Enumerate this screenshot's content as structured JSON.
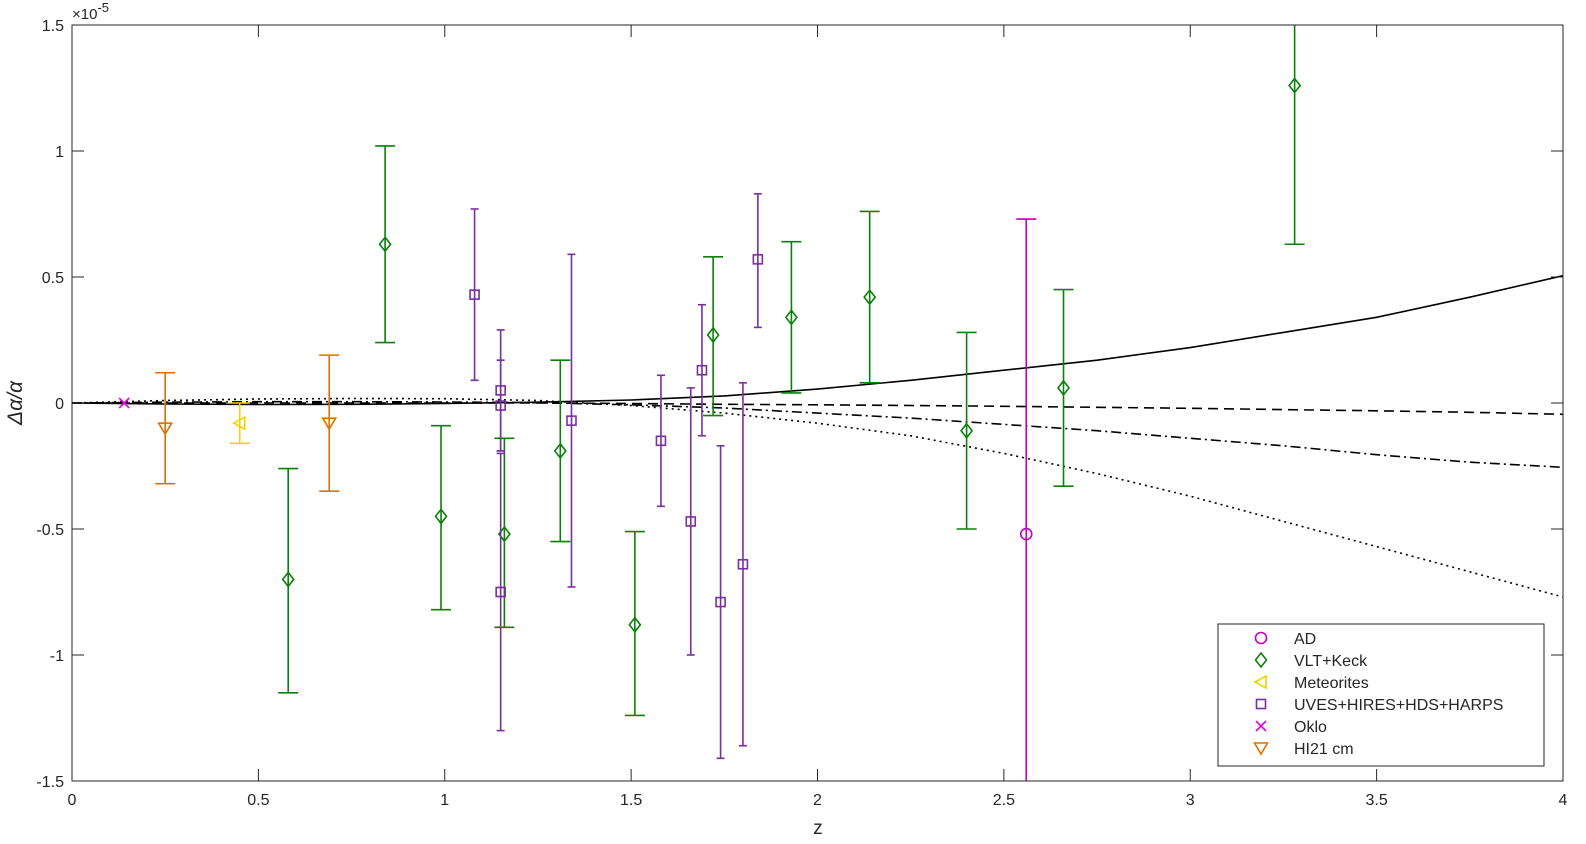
{
  "chart_data": {
    "type": "scatter",
    "xlabel": "z",
    "ylabel": "Δα/α",
    "scale_exponent_label": "×10",
    "scale_exponent_power": "-5",
    "xlim": [
      0,
      4
    ],
    "ylim": [
      -1.5,
      1.5
    ],
    "xticks": [
      0,
      0.5,
      1,
      1.5,
      2,
      2.5,
      3,
      3.5,
      4
    ],
    "xtick_labels": [
      "0",
      "0.5",
      "1",
      "1.5",
      "2",
      "2.5",
      "3",
      "3.5",
      "4"
    ],
    "yticks": [
      -1.5,
      -1,
      -0.5,
      0,
      0.5,
      1,
      1.5
    ],
    "ytick_labels": [
      "-1.5",
      "-1",
      "-0.5",
      "0",
      "0.5",
      "1",
      "1.5"
    ],
    "grid": false,
    "legend_position": "bottom-right",
    "series": [
      {
        "name": "AD",
        "marker": "circle",
        "color": "#c000c0",
        "points": [
          {
            "x": 2.56,
            "y": -0.52,
            "lo": -1.77,
            "hi": 0.73
          }
        ]
      },
      {
        "name": "VLT+Keck",
        "marker": "diamond",
        "color": "#0a800a",
        "points": [
          {
            "x": 0.58,
            "y": -0.7,
            "lo": -1.15,
            "hi": -0.26
          },
          {
            "x": 0.84,
            "y": 0.63,
            "lo": 0.24,
            "hi": 1.02
          },
          {
            "x": 0.99,
            "y": -0.45,
            "lo": -0.82,
            "hi": -0.09
          },
          {
            "x": 1.16,
            "y": -0.52,
            "lo": -0.89,
            "hi": -0.14
          },
          {
            "x": 1.31,
            "y": -0.19,
            "lo": -0.55,
            "hi": 0.17
          },
          {
            "x": 1.51,
            "y": -0.88,
            "lo": -1.24,
            "hi": -0.51
          },
          {
            "x": 1.72,
            "y": 0.27,
            "lo": -0.05,
            "hi": 0.58
          },
          {
            "x": 1.93,
            "y": 0.34,
            "lo": 0.04,
            "hi": 0.64
          },
          {
            "x": 2.14,
            "y": 0.42,
            "lo": 0.08,
            "hi": 0.76
          },
          {
            "x": 2.4,
            "y": -0.11,
            "lo": -0.5,
            "hi": 0.28
          },
          {
            "x": 2.66,
            "y": 0.06,
            "lo": -0.33,
            "hi": 0.45
          },
          {
            "x": 3.28,
            "y": 1.26,
            "lo": 0.63,
            "hi": 1.89
          }
        ]
      },
      {
        "name": "Meteorites",
        "marker": "triangle-left",
        "color": "#f2d200",
        "points": [
          {
            "x": 0.45,
            "y": -0.08,
            "lo": -0.16,
            "hi": 0.0
          }
        ]
      },
      {
        "name": "UVES+HIRES+HDS+HARPS",
        "marker": "square",
        "color": "#7a2f9e",
        "points": [
          {
            "x": 1.08,
            "y": 0.43,
            "lo": 0.09,
            "hi": 0.77
          },
          {
            "x": 1.15,
            "y": -0.75,
            "lo": -1.3,
            "hi": -0.2
          },
          {
            "x": 1.15,
            "y": 0.05,
            "lo": -0.19,
            "hi": 0.29
          },
          {
            "x": 1.15,
            "y": -0.01,
            "lo": -0.19,
            "hi": 0.17
          },
          {
            "x": 1.34,
            "y": -0.07,
            "lo": -0.73,
            "hi": 0.59
          },
          {
            "x": 1.58,
            "y": -0.15,
            "lo": -0.41,
            "hi": 0.11
          },
          {
            "x": 1.66,
            "y": -0.47,
            "lo": -1.0,
            "hi": 0.06
          },
          {
            "x": 1.69,
            "y": 0.13,
            "lo": -0.13,
            "hi": 0.39
          },
          {
            "x": 1.74,
            "y": -0.79,
            "lo": -1.41,
            "hi": -0.17
          },
          {
            "x": 1.8,
            "y": -0.64,
            "lo": -1.36,
            "hi": 0.08
          },
          {
            "x": 1.84,
            "y": 0.57,
            "lo": 0.3,
            "hi": 0.83
          }
        ]
      },
      {
        "name": "Oklo",
        "marker": "x",
        "color": "#e600e6",
        "points": [
          {
            "x": 0.14,
            "y": 0.0
          }
        ]
      },
      {
        "name": "HI21 cm",
        "marker": "triangle-down",
        "color": "#e07000",
        "points": [
          {
            "x": 0.25,
            "y": -0.1,
            "lo": -0.32,
            "hi": 0.12
          },
          {
            "x": 0.69,
            "y": -0.08,
            "lo": -0.35,
            "hi": 0.19
          }
        ]
      }
    ],
    "curves": [
      {
        "style": "solid",
        "color": "#000000",
        "x": [
          0,
          0.25,
          0.5,
          0.75,
          1.0,
          1.25,
          1.5,
          1.75,
          2.0,
          2.25,
          2.5,
          2.75,
          3.0,
          3.25,
          3.5,
          3.75,
          4.0
        ],
        "y": [
          0,
          -0.004,
          -0.006,
          -0.005,
          -0.002,
          0.003,
          0.012,
          0.028,
          0.055,
          0.09,
          0.13,
          0.17,
          0.22,
          0.28,
          0.34,
          0.42,
          0.505
        ]
      },
      {
        "style": "dashed",
        "color": "#000000",
        "x": [
          0,
          0.25,
          0.5,
          0.75,
          1.0,
          1.25,
          1.5,
          1.75,
          2.0,
          2.25,
          2.5,
          2.75,
          3.0,
          3.25,
          3.5,
          3.75,
          4.0
        ],
        "y": [
          0,
          0.0,
          0.0,
          0.0,
          0.0,
          0.0,
          -0.002,
          -0.005,
          -0.007,
          -0.01,
          -0.013,
          -0.017,
          -0.021,
          -0.026,
          -0.031,
          -0.037,
          -0.045
        ]
      },
      {
        "style": "dashdot",
        "color": "#000000",
        "x": [
          0,
          0.25,
          0.5,
          0.75,
          1.0,
          1.25,
          1.5,
          1.75,
          2.0,
          2.25,
          2.5,
          2.75,
          3.0,
          3.25,
          3.5,
          3.75,
          4.0
        ],
        "y": [
          0,
          0.003,
          0.005,
          0.005,
          0.004,
          0.001,
          -0.007,
          -0.02,
          -0.04,
          -0.06,
          -0.085,
          -0.11,
          -0.14,
          -0.17,
          -0.205,
          -0.235,
          -0.255
        ]
      },
      {
        "style": "dotted",
        "color": "#000000",
        "x": [
          0,
          0.25,
          0.5,
          0.75,
          1.0,
          1.25,
          1.5,
          1.75,
          2.0,
          2.25,
          2.5,
          2.75,
          3.0,
          3.25,
          3.5,
          3.75,
          4.0
        ],
        "y": [
          0,
          0.01,
          0.016,
          0.018,
          0.017,
          0.01,
          -0.01,
          -0.04,
          -0.08,
          -0.13,
          -0.2,
          -0.28,
          -0.37,
          -0.47,
          -0.57,
          -0.67,
          -0.77
        ]
      }
    ]
  }
}
